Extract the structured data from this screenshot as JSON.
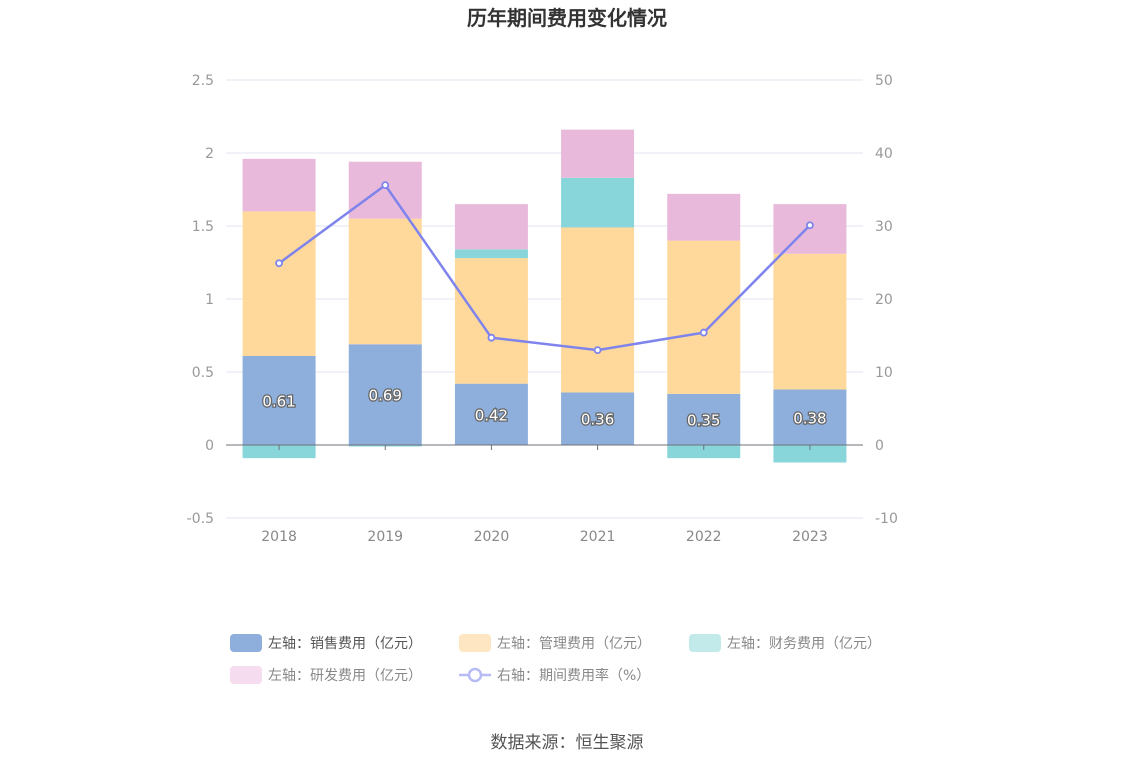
{
  "chart_data": {
    "type": "bar",
    "stacked": true,
    "title": "历年期间费用变化情况",
    "categories": [
      "2018",
      "2019",
      "2020",
      "2021",
      "2022",
      "2023"
    ],
    "left_axis": {
      "ylim": [
        -0.5,
        2.5
      ],
      "ticks": [
        "-0.5",
        "0",
        "0.5",
        "1",
        "1.5",
        "2",
        "2.5"
      ]
    },
    "right_axis": {
      "ylim": [
        -10,
        50
      ],
      "ticks": [
        "-10",
        "0",
        "10",
        "20",
        "30",
        "40",
        "50"
      ]
    },
    "grid": true,
    "series": [
      {
        "name": "左轴：销售费用（亿元）",
        "type": "bar",
        "axis": "left",
        "color": "#8eaedb",
        "values": [
          0.61,
          0.69,
          0.42,
          0.36,
          0.35,
          0.38
        ],
        "labels": [
          "0.61",
          "0.69",
          "0.42",
          "0.36",
          "0.35",
          "0.38"
        ]
      },
      {
        "name": "左轴：管理费用（亿元）",
        "type": "bar",
        "axis": "left",
        "color": "#ffd99b",
        "values": [
          0.99,
          0.86,
          0.86,
          1.13,
          1.05,
          0.93
        ]
      },
      {
        "name": "左轴：财务费用（亿元）",
        "type": "bar",
        "axis": "left",
        "color": "#88d6d9",
        "values": [
          -0.09,
          -0.01,
          0.06,
          0.34,
          -0.09,
          -0.12
        ]
      },
      {
        "name": "左轴：研发费用（亿元）",
        "type": "bar",
        "axis": "left",
        "color": "#e8b9db",
        "values": [
          0.36,
          0.39,
          0.31,
          0.33,
          0.32,
          0.34
        ]
      },
      {
        "name": "右轴：期间费用率（%）",
        "type": "line",
        "axis": "right",
        "color": "#7f84ec",
        "values": [
          24.9,
          35.6,
          14.7,
          13.0,
          15.4,
          30.1
        ]
      }
    ],
    "legend_position": "bottom",
    "legend_colors": [
      "#8eaedb",
      "#ffe6c3",
      "#c3eaeb",
      "#f5dcee",
      "#b7bbf5"
    ]
  },
  "source": "数据来源：恒生聚源"
}
